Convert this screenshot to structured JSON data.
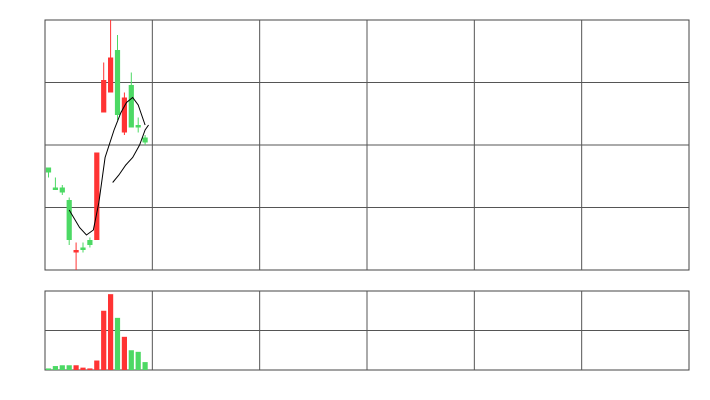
{
  "chart_data": [
    {
      "type": "candlestick",
      "panel": "price",
      "title": "",
      "xlabel": "",
      "ylabel": "",
      "grid": true,
      "x_range": [
        0,
        60
      ],
      "ylim": [
        0,
        100
      ],
      "up_color": "#4cd964",
      "down_color": "#ff3333",
      "ma_color": "#000000",
      "candles": [
        {
          "x": 0,
          "open": 39,
          "high": 41,
          "low": 37,
          "close": 41
        },
        {
          "x": 1,
          "open": 32,
          "high": 37,
          "low": 32,
          "close": 33
        },
        {
          "x": 2,
          "open": 31,
          "high": 34,
          "low": 30,
          "close": 33
        },
        {
          "x": 3,
          "open": 12,
          "high": 29,
          "low": 10,
          "close": 28
        },
        {
          "x": 4,
          "open": 8,
          "high": 11,
          "low": 0,
          "close": 7
        },
        {
          "x": 5,
          "open": 8,
          "high": 11,
          "low": 7,
          "close": 9
        },
        {
          "x": 6,
          "open": 10,
          "high": 13,
          "low": 9,
          "close": 12
        },
        {
          "x": 7,
          "open": 47,
          "high": 47,
          "low": 12,
          "close": 12
        },
        {
          "x": 8,
          "open": 76,
          "high": 83,
          "low": 63,
          "close": 63
        },
        {
          "x": 9,
          "open": 85,
          "high": 100,
          "low": 71,
          "close": 71
        },
        {
          "x": 10,
          "open": 62,
          "high": 94,
          "low": 60,
          "close": 88
        },
        {
          "x": 11,
          "open": 69,
          "high": 71,
          "low": 54,
          "close": 55
        },
        {
          "x": 12,
          "open": 57,
          "high": 79,
          "low": 57,
          "close": 74
        },
        {
          "x": 13,
          "open": 57,
          "high": 61,
          "low": 55,
          "close": 58
        },
        {
          "x": 14,
          "open": 51,
          "high": 54,
          "low": 50,
          "close": 53
        }
      ],
      "ma_segments": [
        [
          [
            3,
            24
          ],
          [
            4.5,
            17
          ],
          [
            5.5,
            14
          ],
          [
            6.5,
            16
          ],
          [
            7.3,
            27
          ],
          [
            8.2,
            45
          ],
          [
            9.5,
            56
          ],
          [
            10.5,
            63
          ],
          [
            11.3,
            67
          ],
          [
            12.2,
            69
          ],
          [
            13,
            66
          ],
          [
            14,
            58
          ]
        ],
        [
          [
            9.3,
            35
          ],
          [
            10.2,
            38
          ],
          [
            11.2,
            42
          ],
          [
            12.2,
            45
          ],
          [
            13.2,
            50
          ],
          [
            14,
            56
          ],
          [
            14.5,
            58
          ]
        ]
      ]
    },
    {
      "type": "bar",
      "panel": "volume",
      "title": "",
      "xlabel": "",
      "ylabel": "",
      "grid": true,
      "x_range": [
        0,
        60
      ],
      "ylim": [
        0,
        100
      ],
      "bars": [
        {
          "x": 0,
          "value": 2,
          "color": "#4cd964"
        },
        {
          "x": 1,
          "value": 5,
          "color": "#4cd964"
        },
        {
          "x": 2,
          "value": 6,
          "color": "#4cd964"
        },
        {
          "x": 3,
          "value": 6,
          "color": "#4cd964"
        },
        {
          "x": 4,
          "value": 6,
          "color": "#ff3333"
        },
        {
          "x": 5,
          "value": 3,
          "color": "#ff3333"
        },
        {
          "x": 6,
          "value": 2,
          "color": "#ff3333"
        },
        {
          "x": 7,
          "value": 12,
          "color": "#ff3333"
        },
        {
          "x": 8,
          "value": 75,
          "color": "#ff3333"
        },
        {
          "x": 9,
          "value": 96,
          "color": "#ff3333"
        },
        {
          "x": 10,
          "value": 66,
          "color": "#4cd964"
        },
        {
          "x": 11,
          "value": 42,
          "color": "#ff3333"
        },
        {
          "x": 12,
          "value": 25,
          "color": "#4cd964"
        },
        {
          "x": 13,
          "value": 23,
          "color": "#4cd964"
        },
        {
          "x": 14,
          "value": 10,
          "color": "#4cd964"
        }
      ]
    }
  ]
}
